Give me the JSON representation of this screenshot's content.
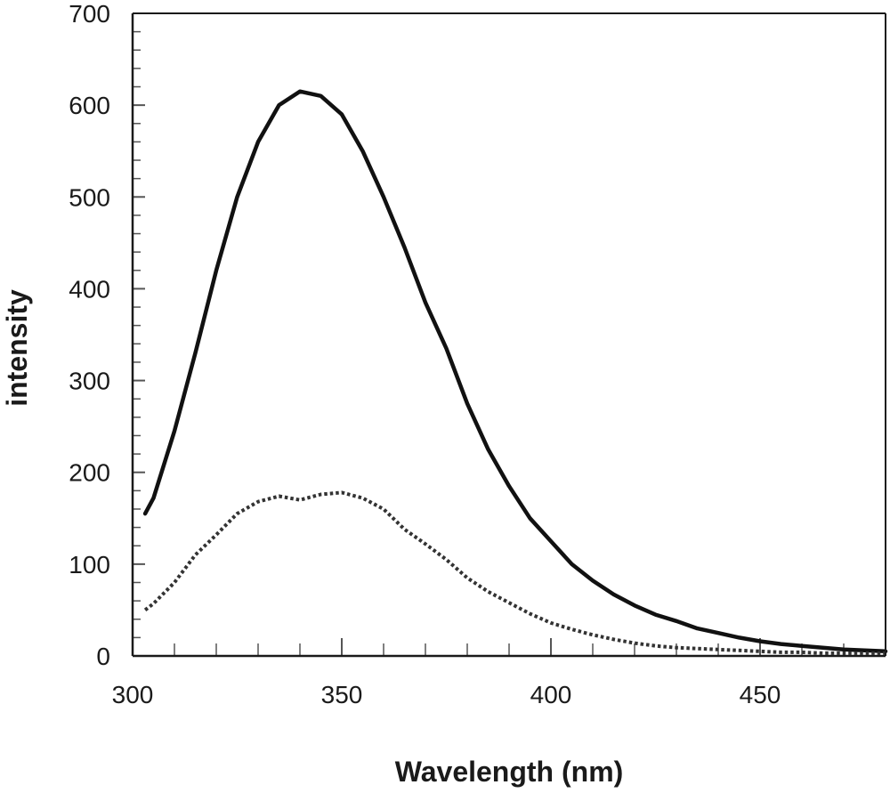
{
  "chart_data": {
    "type": "line",
    "title": "",
    "xlabel": "Wavelength (nm)",
    "ylabel": "intensity",
    "xlim": [
      300,
      480
    ],
    "ylim": [
      0,
      700
    ],
    "x_ticks": [
      300,
      350,
      400,
      450
    ],
    "y_ticks": [
      0,
      100,
      200,
      300,
      400,
      500,
      600,
      700
    ],
    "grid": false,
    "legend": "none",
    "series": [
      {
        "style": "solid",
        "color": "#111111",
        "x": [
          303,
          305,
          310,
          315,
          320,
          325,
          330,
          335,
          340,
          345,
          350,
          355,
          360,
          365,
          370,
          375,
          380,
          385,
          390,
          395,
          400,
          405,
          410,
          415,
          420,
          425,
          430,
          435,
          440,
          445,
          450,
          455,
          460,
          465,
          470,
          475,
          480
        ],
        "y": [
          155,
          172,
          245,
          330,
          420,
          500,
          560,
          600,
          615,
          610,
          590,
          550,
          500,
          445,
          385,
          335,
          275,
          225,
          185,
          150,
          125,
          100,
          82,
          67,
          55,
          45,
          38,
          30,
          25,
          20,
          16,
          13,
          11,
          9,
          7,
          6,
          5
        ]
      },
      {
        "style": "dotted",
        "color": "#333333",
        "x": [
          303,
          305,
          310,
          315,
          320,
          325,
          330,
          335,
          340,
          345,
          350,
          355,
          360,
          365,
          370,
          375,
          380,
          385,
          390,
          395,
          400,
          405,
          410,
          415,
          420,
          425,
          430,
          435,
          440,
          445,
          450,
          455,
          460,
          465,
          470,
          475,
          480
        ],
        "y": [
          50,
          57,
          80,
          110,
          132,
          155,
          168,
          174,
          170,
          176,
          178,
          172,
          160,
          138,
          122,
          105,
          85,
          70,
          58,
          46,
          36,
          29,
          23,
          18,
          14,
          11,
          9,
          8,
          7,
          6,
          5,
          4,
          4,
          3,
          3,
          3,
          3
        ]
      }
    ]
  }
}
